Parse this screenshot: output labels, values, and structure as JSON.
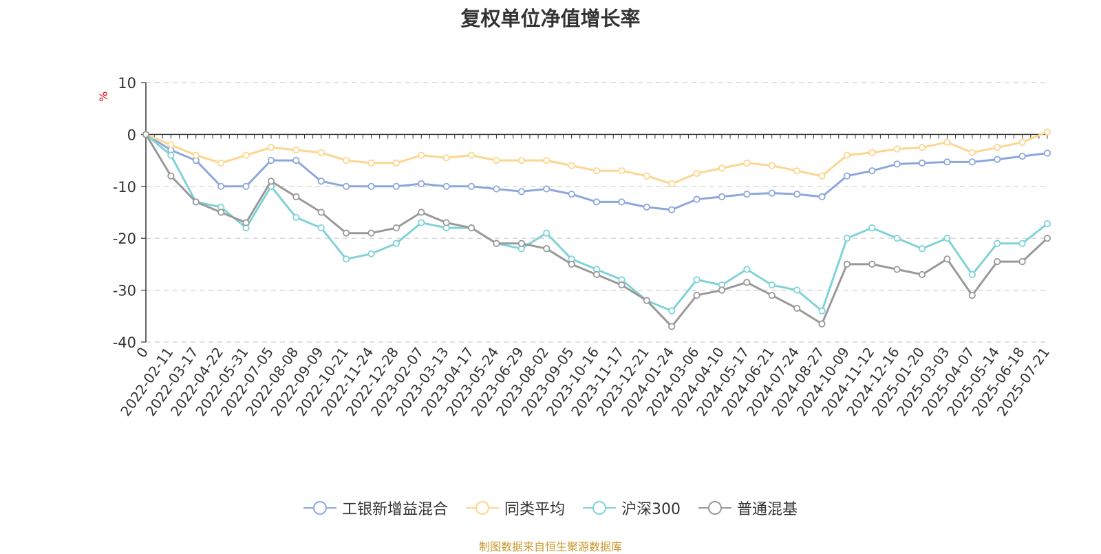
{
  "chart_data": {
    "type": "line",
    "title": "复权单位净值增长率",
    "ylabel": "%",
    "ylim": [
      -40,
      10
    ],
    "yticks": [
      "10",
      "0",
      "-10",
      "-20",
      "-30",
      "-40"
    ],
    "x_labels": [
      "0",
      "2022-02-11",
      "2022-03-17",
      "2022-04-22",
      "2022-05-31",
      "2022-07-05",
      "2022-08-08",
      "2022-09-09",
      "2022-10-21",
      "2022-11-24",
      "2022-12-28",
      "2023-02-07",
      "2023-03-13",
      "2023-04-17",
      "2023-05-24",
      "2023-06-29",
      "2023-08-02",
      "2023-09-05",
      "2023-10-16",
      "2023-11-17",
      "2023-12-21",
      "2024-01-24",
      "2024-03-06",
      "2024-04-10",
      "2024-05-17",
      "2024-06-21",
      "2024-07-24",
      "2024-08-27",
      "2024-10-09",
      "2024-11-12",
      "2024-12-16",
      "2025-01-20",
      "2025-03-03",
      "2025-04-07",
      "2025-05-14",
      "2025-06-18",
      "2025-07-21"
    ],
    "grid": "horizontal dashed",
    "legend_position": "bottom",
    "series": [
      {
        "name": "工银新增益混合",
        "color": "#8da7dc",
        "values": [
          0,
          -3,
          -5,
          -10,
          -10,
          -5,
          -5,
          -9,
          -10,
          -10,
          -10,
          -9.5,
          -10,
          -10,
          -10.5,
          -11,
          -10.5,
          -11.5,
          -13,
          -13,
          -14,
          -14.5,
          -12.5,
          -12,
          -11.5,
          -11.3,
          -11.5,
          -12,
          -8,
          -7,
          -5.7,
          -5.5,
          -5.3,
          -5.3,
          -4.8,
          -4.2,
          -3.6
        ]
      },
      {
        "name": "同类平均",
        "color": "#fcd68e",
        "values": [
          0,
          -2,
          -4,
          -5.5,
          -4,
          -2.5,
          -3,
          -3.5,
          -5,
          -5.5,
          -5.5,
          -4,
          -4.5,
          -4,
          -5,
          -5,
          -5,
          -6,
          -7,
          -7,
          -8,
          -9.5,
          -7.5,
          -6.5,
          -5.5,
          -6,
          -7,
          -8,
          -4,
          -3.5,
          -2.8,
          -2.5,
          -1.5,
          -3.5,
          -2.5,
          -1.5,
          0.5
        ]
      },
      {
        "name": "沪深300",
        "color": "#7fd3d7",
        "values": [
          0,
          -4,
          -13,
          -14,
          -18,
          -10,
          -16,
          -18,
          -24,
          -23,
          -21,
          -17,
          -18,
          -18,
          -21,
          -22,
          -19,
          -24,
          -26,
          -28,
          -32,
          -34,
          -28,
          -29,
          -26,
          -29,
          -30,
          -34,
          -20,
          -18,
          -20,
          -22,
          -20,
          -27,
          -21,
          -21,
          -17.2
        ]
      },
      {
        "name": "普通混基",
        "color": "#999999",
        "values": [
          0,
          -8,
          -13,
          -15,
          -17,
          -9,
          -12,
          -15,
          -19,
          -19,
          -18,
          -15,
          -17,
          -18,
          -21,
          -21,
          -22,
          -25,
          -27,
          -29,
          -32,
          -37,
          -31,
          -30,
          -28.5,
          -31,
          -33.5,
          -36.5,
          -25,
          -25,
          -26,
          -27,
          -24,
          -31,
          -24.5,
          -24.5,
          -20
        ]
      }
    ]
  },
  "source_note": "制图数据来自恒生聚源数据库"
}
